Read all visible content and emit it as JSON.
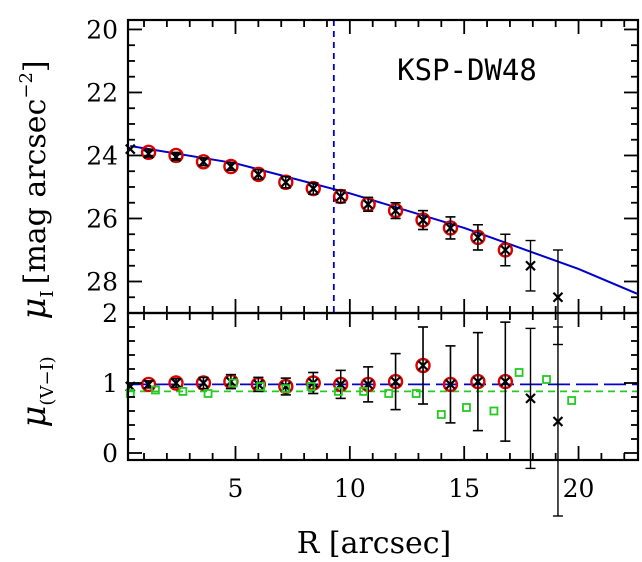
{
  "chart_data": [
    {
      "type": "scatter",
      "panel": "top",
      "annotation": "KSP-DW48",
      "ylabel": {
        "symbol": "μ",
        "subscript": "I",
        "bracket": "[mag arcsec",
        "exponent": "−2",
        "close": "]"
      },
      "xlim": [
        0.3,
        22.6
      ],
      "ylim": [
        29.0,
        19.7
      ],
      "y_inverted": true,
      "y_ticks": [
        "20",
        "22",
        "24",
        "26",
        "28"
      ],
      "vline_x": 9.3,
      "model_line": {
        "color": "#0000cc",
        "x": [
          0.4,
          5.0,
          10.0,
          15.0,
          20.0,
          22.6
        ],
        "y": [
          23.7,
          24.25,
          25.2,
          26.3,
          27.6,
          28.4
        ]
      },
      "series": [
        {
          "marker": "circle",
          "color": "#dd0000",
          "x": [
            1.2,
            2.4,
            3.6,
            4.8,
            6.0,
            7.2,
            8.4,
            9.6,
            10.8,
            12.0,
            13.2,
            14.4,
            15.6,
            16.8
          ],
          "y": [
            23.9,
            24.0,
            24.2,
            24.35,
            24.6,
            24.85,
            25.05,
            25.3,
            25.55,
            25.75,
            26.05,
            26.3,
            26.6,
            27.0
          ],
          "err": [
            0.1,
            0.1,
            0.12,
            0.12,
            0.15,
            0.18,
            0.18,
            0.2,
            0.22,
            0.25,
            0.3,
            0.35,
            0.4,
            0.5
          ]
        },
        {
          "marker": "x",
          "color": "#000000",
          "x": [
            0.4,
            1.2,
            2.4,
            3.6,
            4.8,
            6.0,
            7.2,
            8.4,
            9.6,
            10.8,
            12.0,
            13.2,
            14.4,
            15.6,
            16.8,
            17.9,
            19.1
          ],
          "y": [
            23.8,
            23.95,
            24.05,
            24.2,
            24.35,
            24.6,
            24.85,
            25.05,
            25.3,
            25.55,
            25.75,
            26.05,
            26.3,
            26.6,
            27.0,
            27.5,
            28.5
          ],
          "err": [
            0,
            0.1,
            0.1,
            0.12,
            0.12,
            0.15,
            0.18,
            0.18,
            0.2,
            0.22,
            0.25,
            0.3,
            0.35,
            0.4,
            0.5,
            0.8,
            1.5
          ]
        }
      ]
    },
    {
      "type": "scatter",
      "panel": "bottom",
      "xlabel": "R [arcsec]",
      "ylabel": {
        "symbol": "μ",
        "subscript": "(V−I)"
      },
      "xlim": [
        0.3,
        22.6
      ],
      "ylim": [
        -0.1,
        2.0
      ],
      "x_ticks": [
        "5",
        "10",
        "15",
        "20"
      ],
      "x_tick_values": [
        5,
        10,
        15,
        20
      ],
      "y_ticks": [
        "0",
        "1",
        "2"
      ],
      "y_tick_values": [
        0,
        1,
        2
      ],
      "hlines": [
        {
          "y": 0.98,
          "color": "#0000cc",
          "style": "long-dash"
        },
        {
          "y": 0.88,
          "color": "#22cc22",
          "style": "dash"
        }
      ],
      "series": [
        {
          "marker": "circle",
          "color": "#dd0000",
          "x": [
            1.2,
            2.4,
            3.6,
            4.8,
            6.0,
            7.2,
            8.4,
            9.6,
            10.8,
            12.0,
            13.2,
            14.4,
            15.6,
            16.8
          ],
          "y": [
            0.98,
            1.0,
            1.0,
            1.02,
            0.98,
            0.95,
            1.0,
            0.98,
            0.98,
            1.02,
            1.25,
            0.98,
            1.02,
            1.02
          ],
          "err": [
            0.05,
            0.06,
            0.08,
            0.1,
            0.1,
            0.12,
            0.15,
            0.2,
            0.25,
            0.4,
            0.55,
            0.55,
            0.7,
            0.85
          ]
        },
        {
          "marker": "x",
          "color": "#000000",
          "x": [
            0.4,
            1.2,
            2.4,
            3.6,
            4.8,
            6.0,
            7.2,
            8.4,
            9.6,
            10.8,
            12.0,
            13.2,
            14.4,
            15.6,
            16.8,
            17.9,
            19.1
          ],
          "y": [
            0.95,
            0.98,
            1.0,
            1.0,
            1.02,
            0.98,
            0.95,
            1.0,
            0.98,
            0.98,
            1.02,
            1.25,
            0.98,
            1.02,
            1.02,
            0.78,
            0.45
          ],
          "err": [
            0,
            0.05,
            0.06,
            0.08,
            0.1,
            0.1,
            0.12,
            0.15,
            0.2,
            0.25,
            0.4,
            0.55,
            0.55,
            0.7,
            0.85,
            1.0,
            1.35
          ]
        },
        {
          "marker": "square",
          "color": "#22cc22",
          "x": [
            0.4,
            1.5,
            2.7,
            3.8,
            4.9,
            6.1,
            7.2,
            8.3,
            9.5,
            10.6,
            11.7,
            12.9,
            14.0,
            15.1,
            16.3,
            17.4,
            18.6,
            19.7
          ],
          "y": [
            0.85,
            0.9,
            0.88,
            0.85,
            1.0,
            0.95,
            0.92,
            0.95,
            0.88,
            0.88,
            0.85,
            0.85,
            0.55,
            0.65,
            0.6,
            1.15,
            1.05,
            0.75
          ],
          "err": []
        }
      ]
    }
  ]
}
